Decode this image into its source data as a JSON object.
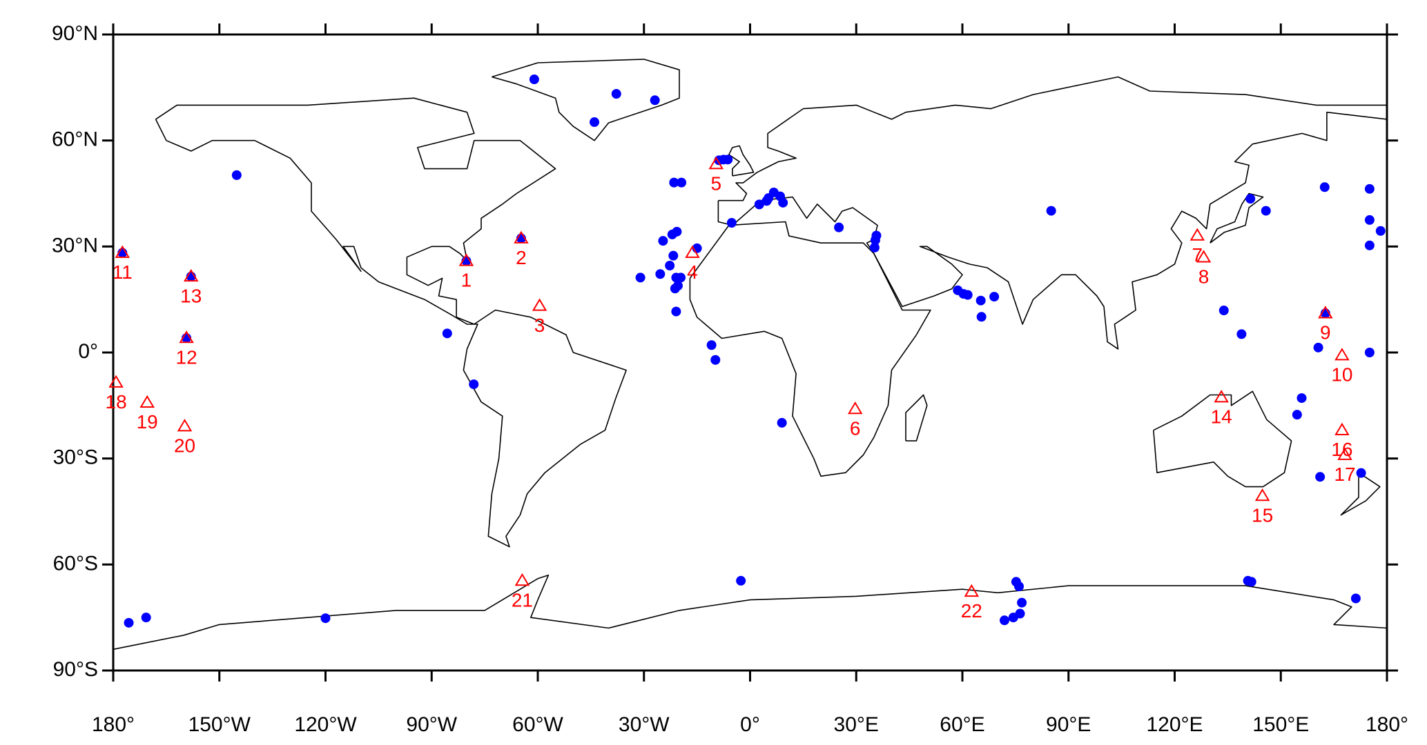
{
  "chart_data": {
    "type": "scatter",
    "xlim": [
      -180,
      180
    ],
    "ylim": [
      -90,
      90
    ],
    "xticks": [
      {
        "value": -180,
        "label": "180°"
      },
      {
        "value": -150,
        "label": "150°W"
      },
      {
        "value": -120,
        "label": "120°W"
      },
      {
        "value": -90,
        "label": "90°W"
      },
      {
        "value": -60,
        "label": "60°W"
      },
      {
        "value": -30,
        "label": "30°W"
      },
      {
        "value": 0,
        "label": "0°"
      },
      {
        "value": 30,
        "label": "30°E"
      },
      {
        "value": 60,
        "label": "60°E"
      },
      {
        "value": 90,
        "label": "90°E"
      },
      {
        "value": 120,
        "label": "120°E"
      },
      {
        "value": 150,
        "label": "150°E"
      },
      {
        "value": 180,
        "label": "180°"
      }
    ],
    "yticks": [
      {
        "value": 90,
        "label": "90°N"
      },
      {
        "value": 60,
        "label": "60°N"
      },
      {
        "value": 30,
        "label": "30°N"
      },
      {
        "value": 0,
        "label": "0°"
      },
      {
        "value": -30,
        "label": "30°S"
      },
      {
        "value": -60,
        "label": "60°S"
      },
      {
        "value": -90,
        "label": "90°S"
      }
    ],
    "series": [
      {
        "color": "#0000ff",
        "marker": "circle",
        "x": [
          -61,
          -37.8,
          -44,
          -26.9,
          -145.1,
          -64.7,
          -80.2,
          -158,
          -177.4,
          -159.3,
          -85.6,
          -78.1,
          -8.8,
          -7.5,
          -6.3,
          -21.5,
          -19.4,
          -5.2,
          -24.6,
          -22,
          -20.7,
          -15,
          -21.7,
          -22.7,
          -25.4,
          -31,
          -20.9,
          -19.6,
          -20.4,
          -21.2,
          -20.9,
          -10.9,
          -9.8,
          2.6,
          5.2,
          6.7,
          8.5,
          9.3,
          4.7,
          25.1,
          35.7,
          35.4,
          35.2,
          85.1,
          58.7,
          60.3,
          61.5,
          65.2,
          69,
          65.4,
          9,
          -2.6,
          75.2,
          76,
          76.8,
          76.3,
          74.4,
          71.9,
          133.9,
          138.9,
          160.6,
          162.6,
          175.1,
          162.4,
          145.8,
          141.4,
          175.1,
          175.1,
          178.2,
          175.1,
          155.9,
          154.6,
          161.1,
          172.7,
          171.2,
          140.7,
          141.7,
          -120,
          -170.7,
          -175.6
        ],
        "y": [
          77.3,
          73.2,
          65.2,
          71.4,
          50.2,
          32.3,
          25.9,
          21.5,
          28.2,
          4.1,
          5.4,
          -9,
          54.4,
          54.6,
          54.6,
          48.1,
          48.1,
          36.7,
          31.6,
          33.4,
          34.2,
          29.5,
          27.4,
          24.6,
          22.2,
          21.2,
          21.2,
          21.2,
          18.9,
          18.1,
          11.6,
          2.1,
          -2.1,
          41.9,
          43.7,
          45.3,
          44.2,
          42.4,
          42.9,
          35.4,
          33.1,
          31.8,
          29.7,
          40.1,
          17.6,
          16.6,
          16.3,
          14.7,
          15.8,
          10.1,
          -19.9,
          -64.6,
          -64.9,
          -66.2,
          -70.8,
          -73.9,
          -75,
          -75.8,
          11.9,
          5.2,
          1.4,
          11.1,
          0,
          46.8,
          40.1,
          43.5,
          46.3,
          37.5,
          34.4,
          30.3,
          -12.9,
          -17.6,
          -35.2,
          -34.1,
          -69.6,
          -64.6,
          -64.9,
          -75.2,
          -75,
          -76.5
        ]
      },
      {
        "color": "#ff0000",
        "marker": "triangle",
        "labels": [
          "1",
          "2",
          "3",
          "4",
          "5",
          "6",
          "7",
          "8",
          "9",
          "10",
          "11",
          "12",
          "13",
          "14",
          "15",
          "16",
          "17",
          "18",
          "19",
          "20",
          "21",
          "22"
        ],
        "x": [
          -80.2,
          -64.7,
          -59.5,
          -16.3,
          -9.6,
          29.7,
          126.4,
          128.2,
          162.6,
          167.3,
          -177.4,
          -159.3,
          -158,
          133.2,
          144.8,
          167.3,
          168.1,
          -179.2,
          -170.4,
          -159.8,
          -64.4,
          62.6
        ],
        "y": [
          25.9,
          32.3,
          13.2,
          28.2,
          53.3,
          -16,
          33.1,
          26.9,
          11.1,
          -0.8,
          28.2,
          4.1,
          21.5,
          -12.7,
          -40.6,
          -22,
          -29,
          -8.5,
          -14.2,
          -20.9,
          -64.6,
          -67.7
        ]
      }
    ]
  }
}
